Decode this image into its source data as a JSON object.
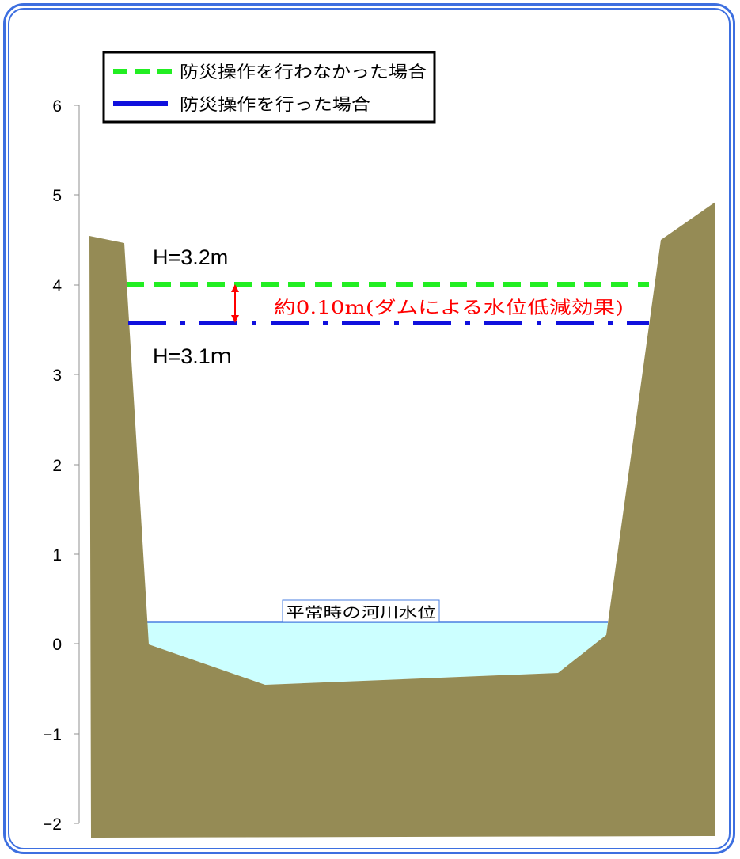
{
  "axis": {
    "ticks": [
      "6",
      "5",
      "4",
      "3",
      "2",
      "1",
      "0",
      "−1",
      "−2"
    ]
  },
  "legend": {
    "no_operation": "防災操作を行わなかった場合",
    "with_operation": "防災操作を行った場合"
  },
  "levels": {
    "no_operation_label": "H=3.2m",
    "with_operation_label": "H=3.1ｍ",
    "reduction_label": "約0.10m(ダムによる水位低減効果)",
    "normal_water_label": "平常時の河川水位"
  },
  "colors": {
    "riverbank": "#958b55",
    "water": "#ccffff",
    "no_operation_line": "#22ee22",
    "with_operation_line": "#1010dd",
    "reduction_arrow": "#ff0000",
    "frame": "#3d6fe0"
  }
}
